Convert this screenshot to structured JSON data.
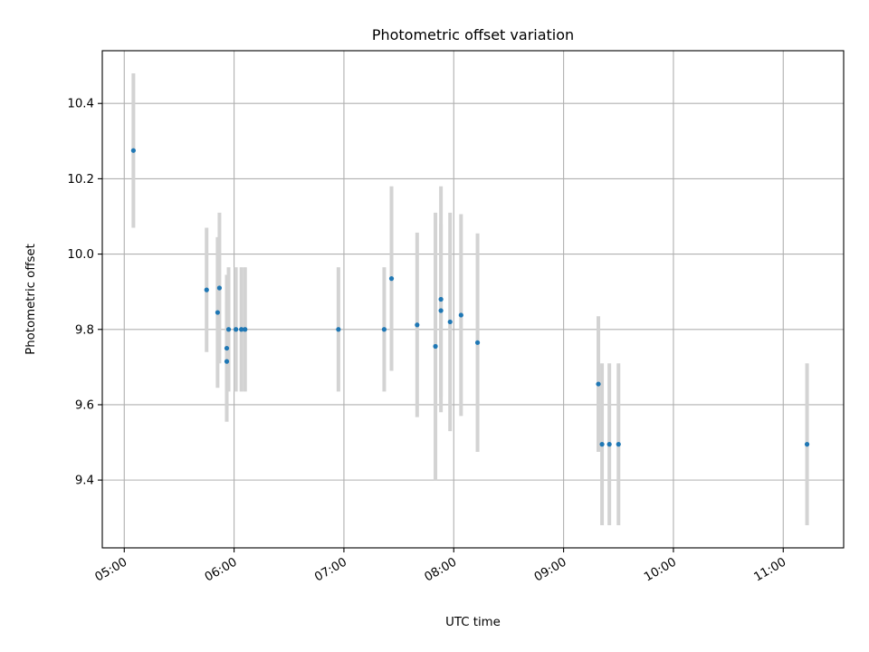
{
  "chart_data": {
    "type": "scatter",
    "title": "Photometric offset variation",
    "xlabel": "UTC time",
    "ylabel": "Photometric offset",
    "x_ticks": [
      "05:00",
      "06:00",
      "07:00",
      "08:00",
      "09:00",
      "10:00",
      "11:00"
    ],
    "y_ticks": [
      "9.4",
      "9.6",
      "9.8",
      "10.0",
      "10.2",
      "10.4"
    ],
    "xlim": [
      "04:48",
      "11:33"
    ],
    "ylim": [
      9.22,
      10.54
    ],
    "grid": true,
    "error_bars": true,
    "colors": {
      "marker": "#1f77b4",
      "errorbar": "#d3d3d3",
      "grid": "#b0b0b0"
    },
    "series": [
      {
        "points": [
          {
            "x": "05:05",
            "y": 10.275,
            "err": 0.205
          },
          {
            "x": "05:45",
            "y": 9.905,
            "err": 0.165
          },
          {
            "x": "05:51",
            "y": 9.845,
            "err": 0.2
          },
          {
            "x": "05:52",
            "y": 9.91,
            "err": 0.2
          },
          {
            "x": "05:56",
            "y": 9.75,
            "err": 0.195
          },
          {
            "x": "05:56",
            "y": 9.715,
            "err": 0.16
          },
          {
            "x": "05:57",
            "y": 9.8,
            "err": 0.165
          },
          {
            "x": "06:01",
            "y": 9.8,
            "err": 0.165
          },
          {
            "x": "06:04",
            "y": 9.8,
            "err": 0.165
          },
          {
            "x": "06:06",
            "y": 9.8,
            "err": 0.165
          },
          {
            "x": "06:57",
            "y": 9.8,
            "err": 0.165
          },
          {
            "x": "07:22",
            "y": 9.8,
            "err": 0.165
          },
          {
            "x": "07:26",
            "y": 9.935,
            "err": 0.245
          },
          {
            "x": "07:40",
            "y": 9.812,
            "err": 0.245
          },
          {
            "x": "07:50",
            "y": 9.755,
            "err": 0.355
          },
          {
            "x": "07:53",
            "y": 9.88,
            "err": 0.3
          },
          {
            "x": "07:53",
            "y": 9.85,
            "err": 0.23
          },
          {
            "x": "07:58",
            "y": 9.82,
            "err": 0.29
          },
          {
            "x": "08:04",
            "y": 9.838,
            "err": 0.268
          },
          {
            "x": "08:13",
            "y": 9.765,
            "err": 0.29
          },
          {
            "x": "09:19",
            "y": 9.655,
            "err": 0.18
          },
          {
            "x": "09:21",
            "y": 9.495,
            "err": 0.215
          },
          {
            "x": "09:25",
            "y": 9.495,
            "err": 0.215
          },
          {
            "x": "09:30",
            "y": 9.495,
            "err": 0.215
          },
          {
            "x": "11:13",
            "y": 9.495,
            "err": 0.215
          }
        ]
      }
    ]
  }
}
